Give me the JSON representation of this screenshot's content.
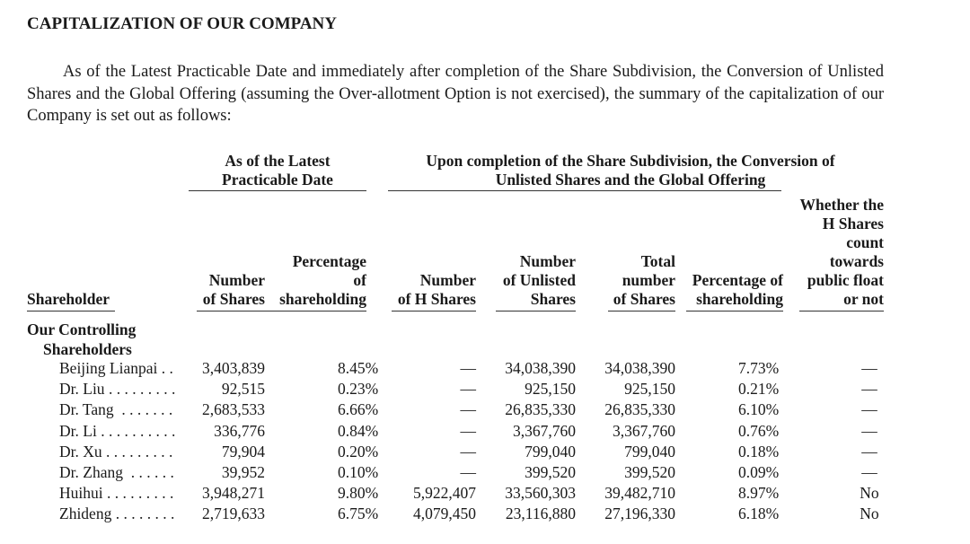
{
  "title": "CAPITALIZATION OF OUR COMPANY",
  "intro": "As of the Latest Practicable Date and immediately after completion of the Share Subdivision, the Conversion of Unlisted Shares and the Global Offering (assuming the Over-allotment Option is not exercised), the summary of the capitalization of our Company is set out as follows:",
  "group_headers": {
    "latest": [
      "As of the Latest",
      "Practicable Date"
    ],
    "upon": [
      "Upon completion of the Share Subdivision, the Conversion of",
      "Unlisted Shares and the Global Offering"
    ]
  },
  "columns": {
    "shareholder": "Shareholder",
    "num_shares": [
      "Number",
      "of Shares"
    ],
    "pct": [
      "Percentage",
      "of",
      "shareholding"
    ],
    "h_shares": [
      "Number",
      "of H Shares"
    ],
    "unlisted": [
      "Number",
      "of Unlisted",
      "Shares"
    ],
    "total": [
      "Total",
      "number",
      "of Shares"
    ],
    "pct2": [
      "Percentage of",
      "shareholding"
    ],
    "float": [
      "Whether the",
      "H Shares",
      "count",
      "towards",
      "public float",
      "or not"
    ]
  },
  "section": [
    "Our Controlling",
    "Shareholders"
  ],
  "rows": [
    {
      "name": "Beijing Lianpai",
      "dots": " . .",
      "shares": "3,403,839",
      "pct": "8.45%",
      "h": "—",
      "unlisted": "34,038,390",
      "total": "34,038,390",
      "pct2": "7.73%",
      "float": "—"
    },
    {
      "name": "Dr. Liu",
      "dots": " . . . . . . . . .",
      "shares": "92,515",
      "pct": "0.23%",
      "h": "—",
      "unlisted": "925,150",
      "total": "925,150",
      "pct2": "0.21%",
      "float": "—"
    },
    {
      "name": "Dr. Tang",
      "dots": "  . . . . . . .",
      "shares": "2,683,533",
      "pct": "6.66%",
      "h": "—",
      "unlisted": "26,835,330",
      "total": "26,835,330",
      "pct2": "6.10%",
      "float": "—"
    },
    {
      "name": "Dr. Li",
      "dots": " . . . . . . . . . .",
      "shares": "336,776",
      "pct": "0.84%",
      "h": "—",
      "unlisted": "3,367,760",
      "total": "3,367,760",
      "pct2": "0.76%",
      "float": "—"
    },
    {
      "name": "Dr. Xu",
      "dots": " . . . . . . . . .",
      "shares": "79,904",
      "pct": "0.20%",
      "h": "—",
      "unlisted": "799,040",
      "total": "799,040",
      "pct2": "0.18%",
      "float": "—"
    },
    {
      "name": "Dr. Zhang",
      "dots": "  . . . . . .",
      "shares": "39,952",
      "pct": "0.10%",
      "h": "—",
      "unlisted": "399,520",
      "total": "399,520",
      "pct2": "0.09%",
      "float": "—"
    },
    {
      "name": "Huihui",
      "dots": " . . . . . . . . .",
      "shares": "3,948,271",
      "pct": "9.80%",
      "h": "5,922,407",
      "unlisted": "33,560,303",
      "total": "39,482,710",
      "pct2": "8.97%",
      "float": "No"
    },
    {
      "name": "Zhideng",
      "dots": " . . . . . . . .",
      "shares": "2,719,633",
      "pct": "6.75%",
      "h": "4,079,450",
      "unlisted": "23,116,880",
      "total": "27,196,330",
      "pct2": "6.18%",
      "float": "No"
    }
  ]
}
